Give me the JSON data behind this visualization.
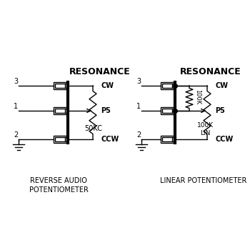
{
  "bg_color": "#ffffff",
  "line_color": "#000000",
  "title1": "RESONANCE",
  "title2": "RESONANCE",
  "label1": "REVERSE AUDIO\nPOTENTIOMETER",
  "label2": "LINEAR POTENTIOMETER",
  "cw": "CW",
  "ccw": "CCW",
  "p5": "P5",
  "val1": "50KC",
  "val2_tap": "100K",
  "val2_main": "100K\nLIN",
  "pin3": "3",
  "pin1": "1",
  "pin2": "2"
}
